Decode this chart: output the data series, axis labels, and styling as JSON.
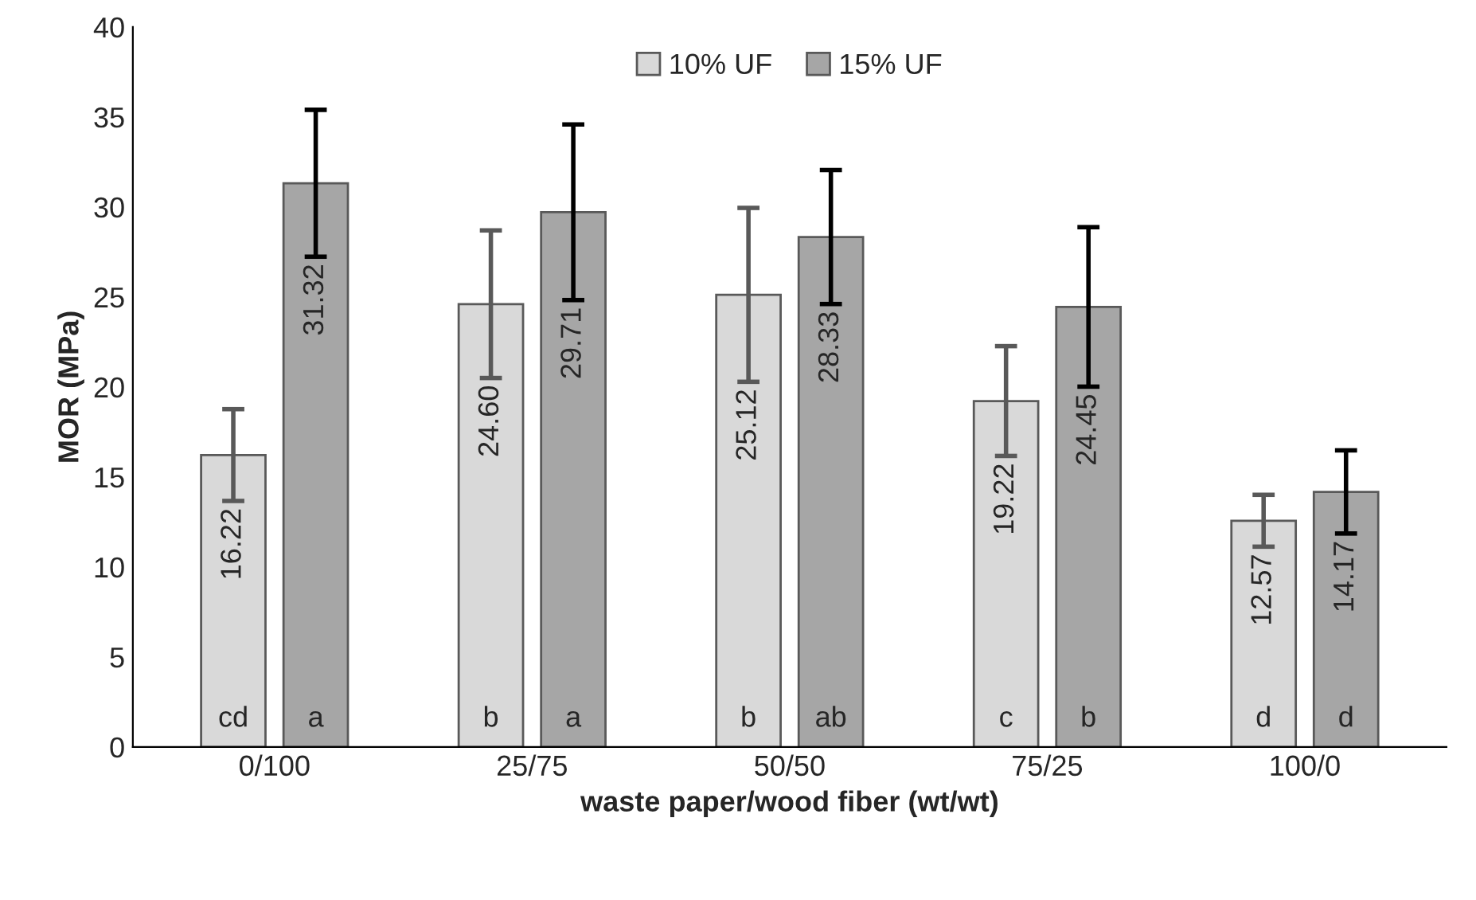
{
  "chart_data": {
    "type": "bar",
    "xlabel": "waste paper/wood fiber (wt/wt)",
    "ylabel": "MOR (MPa)",
    "categories": [
      "0/100",
      "25/75",
      "50/50",
      "75/25",
      "100/0"
    ],
    "series": [
      {
        "name": "10% UF",
        "color": "#d9d9d9",
        "values": [
          16.22,
          24.6,
          25.12,
          19.22,
          12.57
        ],
        "errors": [
          2.55,
          4.1,
          4.83,
          3.05,
          1.44
        ],
        "value_labels": [
          "16.22",
          "24.60",
          "25.12",
          "19.22",
          "12.57"
        ]
      },
      {
        "name": "15% UF",
        "color": "#a6a6a6",
        "values": [
          31.32,
          29.71,
          28.33,
          24.45,
          14.17
        ],
        "errors": [
          4.08,
          4.88,
          3.72,
          4.43,
          2.31
        ],
        "value_labels": [
          "31.32",
          "29.71",
          "28.33",
          "24.45",
          "14.17"
        ]
      }
    ],
    "annotations": [
      "cd",
      "b",
      "b",
      "c",
      "d",
      "a",
      "a",
      "ab",
      "b",
      "d"
    ],
    "ylim": [
      0,
      40
    ],
    "yticks": [
      0,
      5,
      10,
      15,
      20,
      25,
      30,
      35,
      40
    ],
    "grid": false,
    "legend": "top"
  }
}
